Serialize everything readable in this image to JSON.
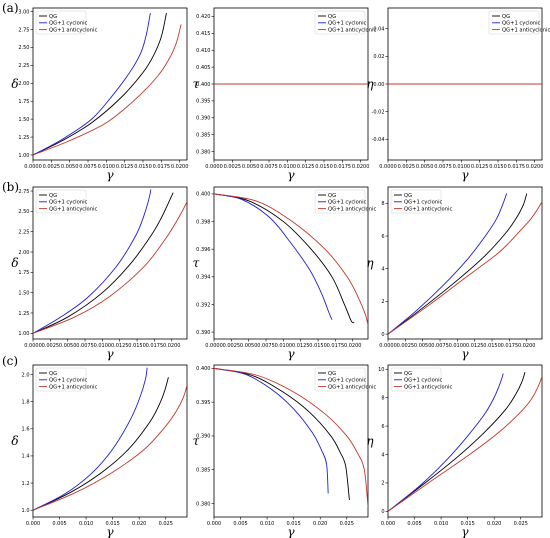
{
  "row_labels": [
    "(a)",
    "(b)",
    "(c)"
  ],
  "colors": {
    "QG": "#000000",
    "QG+1 cyclonic": "#1f1fd6",
    "QG+1 anticyclonic": "#c0392b"
  },
  "chart_data": [
    {
      "type": "line",
      "row": 0,
      "col": 0,
      "xlabel": "γ",
      "ylabel": "δ",
      "xlim": [
        0,
        0.021
      ],
      "ylim": [
        0.93,
        3.05
      ],
      "xticks": [
        0,
        0.0025,
        0.005,
        0.0075,
        0.01,
        0.0125,
        0.015,
        0.0175,
        0.02
      ],
      "xticklabels": [
        "0.0000",
        "0.0025",
        "0.0050",
        "0.0075",
        "0.0100",
        "0.0125",
        "0.0150",
        "0.0175",
        "0.0200"
      ],
      "yticks": [
        1,
        1.25,
        1.5,
        1.75,
        2,
        2.25,
        2.5,
        2.75,
        3
      ],
      "yticklabels": [
        "1.00",
        "1.25",
        "1.50",
        "1.75",
        "2.00",
        "2.25",
        "2.50",
        "2.75",
        "3.00"
      ],
      "legend": "top-left",
      "series": [
        {
          "name": "QG",
          "x": [
            0,
            0.004,
            0.008,
            0.012,
            0.015,
            0.0165,
            0.0175,
            0.0182
          ],
          "y": [
            1,
            1.2,
            1.45,
            1.8,
            2.15,
            2.4,
            2.65,
            2.98
          ]
        },
        {
          "name": "QG+1 cyclonic",
          "x": [
            0,
            0.004,
            0.008,
            0.011,
            0.0135,
            0.0148,
            0.0155,
            0.016
          ],
          "y": [
            1,
            1.22,
            1.5,
            1.85,
            2.2,
            2.45,
            2.7,
            2.98
          ]
        },
        {
          "name": "QG+1 anticyclonic",
          "x": [
            0,
            0.005,
            0.01,
            0.014,
            0.017,
            0.0185,
            0.0195,
            0.0202
          ],
          "y": [
            1,
            1.2,
            1.45,
            1.78,
            2.1,
            2.33,
            2.55,
            2.82
          ]
        }
      ]
    },
    {
      "type": "line",
      "row": 0,
      "col": 1,
      "xlabel": "γ",
      "ylabel": "τ",
      "xlim": [
        0,
        0.021
      ],
      "ylim": [
        0.3775,
        0.4225
      ],
      "xticks": [
        0,
        0.0025,
        0.005,
        0.0075,
        0.01,
        0.0125,
        0.015,
        0.0175,
        0.02
      ],
      "xticklabels": [
        "0.0000",
        "0.0025",
        "0.0050",
        "0.0075",
        "0.0100",
        "0.0125",
        "0.0150",
        "0.0175",
        "0.0200"
      ],
      "yticks": [
        0.38,
        0.385,
        0.39,
        0.395,
        0.4,
        0.405,
        0.41,
        0.415,
        0.42
      ],
      "yticklabels": [
        "0.380",
        "0.385",
        "0.390",
        "0.395",
        "0.400",
        "0.405",
        "0.410",
        "0.415",
        "0.420"
      ],
      "legend": "top-right",
      "series": [
        {
          "name": "QG",
          "x": [
            0,
            0.021
          ],
          "y": [
            0.4,
            0.4
          ]
        },
        {
          "name": "QG+1 cyclonic",
          "x": [
            0,
            0.021
          ],
          "y": [
            0.4,
            0.4
          ]
        },
        {
          "name": "QG+1 anticyclonic",
          "x": [
            0,
            0.021
          ],
          "y": [
            0.4,
            0.4
          ]
        }
      ]
    },
    {
      "type": "line",
      "row": 0,
      "col": 2,
      "xlabel": "γ",
      "ylabel": "η",
      "xlim": [
        0,
        0.021
      ],
      "ylim": [
        -0.055,
        0.055
      ],
      "xticks": [
        0,
        0.0025,
        0.005,
        0.0075,
        0.01,
        0.0125,
        0.015,
        0.0175,
        0.02
      ],
      "xticklabels": [
        "0.0000",
        "0.0025",
        "0.0050",
        "0.0075",
        "0.0100",
        "0.0125",
        "0.0150",
        "0.0175",
        "0.0200"
      ],
      "yticks": [
        -0.04,
        -0.02,
        0,
        0.02,
        0.04
      ],
      "yticklabels": [
        "-0.04",
        "-0.02",
        "0.00",
        "0.02",
        "0.04"
      ],
      "legend": "top-right",
      "series": [
        {
          "name": "QG",
          "x": [
            0,
            0.021
          ],
          "y": [
            0,
            0
          ]
        },
        {
          "name": "QG+1 cyclonic",
          "x": [
            0,
            0.021
          ],
          "y": [
            0,
            0
          ]
        },
        {
          "name": "QG+1 anticyclonic",
          "x": [
            0,
            0.021
          ],
          "y": [
            0,
            0
          ]
        }
      ]
    },
    {
      "type": "line",
      "row": 1,
      "col": 0,
      "xlabel": "γ",
      "ylabel": "δ",
      "xlim": [
        0,
        0.0222
      ],
      "ylim": [
        0.93,
        2.8
      ],
      "xticks": [
        0,
        0.0025,
        0.005,
        0.0075,
        0.01,
        0.0125,
        0.015,
        0.0175,
        0.02
      ],
      "xticklabels": [
        "0.0000",
        "0.0025",
        "0.0050",
        "0.0075",
        "0.0100",
        "0.0125",
        "0.0150",
        "0.0175",
        "0.0200"
      ],
      "yticks": [
        1,
        1.25,
        1.5,
        1.75,
        2,
        2.25,
        2.5,
        2.75
      ],
      "yticklabels": [
        "1.00",
        "1.25",
        "1.50",
        "1.75",
        "2.00",
        "2.25",
        "2.50",
        "2.75"
      ],
      "legend": "top-left",
      "series": [
        {
          "name": "QG",
          "x": [
            0,
            0.005,
            0.01,
            0.014,
            0.017,
            0.0185,
            0.0195,
            0.0202
          ],
          "y": [
            1,
            1.2,
            1.5,
            1.85,
            2.2,
            2.42,
            2.6,
            2.73
          ]
        },
        {
          "name": "QG+1 cyclonic",
          "x": [
            0,
            0.004,
            0.008,
            0.012,
            0.0148,
            0.016,
            0.0167,
            0.017
          ],
          "y": [
            1,
            1.2,
            1.45,
            1.82,
            2.2,
            2.45,
            2.65,
            2.77
          ]
        },
        {
          "name": "QG+1 anticyclonic",
          "x": [
            0,
            0.006,
            0.011,
            0.016,
            0.019,
            0.0205,
            0.0215,
            0.0222
          ],
          "y": [
            1,
            1.2,
            1.45,
            1.82,
            2.15,
            2.35,
            2.5,
            2.62
          ]
        }
      ]
    },
    {
      "type": "line",
      "row": 1,
      "col": 1,
      "xlabel": "γ",
      "ylabel": "τ",
      "xlim": [
        0,
        0.0222
      ],
      "ylim": [
        0.3895,
        0.4005
      ],
      "xticks": [
        0,
        0.0025,
        0.005,
        0.0075,
        0.01,
        0.0125,
        0.015,
        0.0175,
        0.02
      ],
      "xticklabels": [
        "0.0000",
        "0.0025",
        "0.0050",
        "0.0075",
        "0.0100",
        "0.0125",
        "0.0150",
        "0.0175",
        "0.0200"
      ],
      "yticks": [
        0.39,
        0.392,
        0.394,
        0.396,
        0.398,
        0.4
      ],
      "yticklabels": [
        "0.390",
        "0.392",
        "0.394",
        "0.396",
        "0.398",
        "0.400"
      ],
      "legend": "top-right",
      "series": [
        {
          "name": "QG",
          "x": [
            0,
            0.005,
            0.01,
            0.014,
            0.017,
            0.0188,
            0.0198,
            0.0202
          ],
          "y": [
            0.4,
            0.3995,
            0.398,
            0.396,
            0.394,
            0.392,
            0.3908,
            0.3907
          ]
        },
        {
          "name": "QG+1 cyclonic",
          "x": [
            0,
            0.004,
            0.008,
            0.011,
            0.0138,
            0.0155,
            0.0165,
            0.017
          ],
          "y": [
            0.4,
            0.3996,
            0.3983,
            0.3965,
            0.3945,
            0.3928,
            0.3915,
            0.3909
          ]
        },
        {
          "name": "QG+1 anticyclonic",
          "x": [
            0,
            0.006,
            0.011,
            0.016,
            0.0192,
            0.0208,
            0.0218,
            0.0222
          ],
          "y": [
            0.4,
            0.3995,
            0.3981,
            0.396,
            0.394,
            0.3925,
            0.3913,
            0.3905
          ]
        }
      ]
    },
    {
      "type": "line",
      "row": 1,
      "col": 2,
      "xlabel": "γ",
      "ylabel": "η",
      "xlim": [
        0,
        0.0222
      ],
      "ylim": [
        -0.3,
        9
      ],
      "xticks": [
        0,
        0.0025,
        0.005,
        0.0075,
        0.01,
        0.0125,
        0.015,
        0.0175,
        0.02
      ],
      "xticklabels": [
        "0.0000",
        "0.0025",
        "0.0050",
        "0.0075",
        "0.0100",
        "0.0125",
        "0.0150",
        "0.0175",
        "0.0200"
      ],
      "yticks": [
        0,
        2,
        4,
        6,
        8
      ],
      "yticklabels": [
        "0",
        "2",
        "4",
        "6",
        "8"
      ],
      "legend": "top-left",
      "series": [
        {
          "name": "QG",
          "x": [
            0,
            0.005,
            0.01,
            0.014,
            0.017,
            0.0185,
            0.0195,
            0.02
          ],
          "y": [
            0,
            1.6,
            3.3,
            4.8,
            6.2,
            7.1,
            7.9,
            8.6
          ]
        },
        {
          "name": "QG+1 cyclonic",
          "x": [
            0,
            0.004,
            0.008,
            0.0115,
            0.0142,
            0.0157,
            0.0166,
            0.0171
          ],
          "y": [
            0,
            1.4,
            3.0,
            4.6,
            6.1,
            7.1,
            8.0,
            8.6
          ]
        },
        {
          "name": "QG+1 anticyclonic",
          "x": [
            0,
            0.006,
            0.011,
            0.016,
            0.019,
            0.0205,
            0.0215,
            0.0222
          ],
          "y": [
            0,
            1.8,
            3.4,
            5.0,
            6.3,
            7.0,
            7.6,
            8.1
          ]
        }
      ]
    },
    {
      "type": "line",
      "row": 2,
      "col": 0,
      "xlabel": "γ",
      "ylabel": "δ",
      "xlim": [
        0,
        0.029
      ],
      "ylim": [
        0.95,
        2.07
      ],
      "xticks": [
        0,
        0.005,
        0.01,
        0.015,
        0.02,
        0.025
      ],
      "xticklabels": [
        "0.000",
        "0.005",
        "0.010",
        "0.015",
        "0.020",
        "0.025"
      ],
      "yticks": [
        1,
        1.2,
        1.4,
        1.6,
        1.8,
        2
      ],
      "yticklabels": [
        "1.0",
        "1.2",
        "1.4",
        "1.6",
        "1.8",
        "2.0"
      ],
      "legend": "top-left",
      "series": [
        {
          "name": "QG",
          "x": [
            0,
            0.007,
            0.013,
            0.018,
            0.022,
            0.0238,
            0.0248,
            0.0255
          ],
          "y": [
            1,
            1.13,
            1.28,
            1.45,
            1.65,
            1.78,
            1.88,
            1.98
          ]
        },
        {
          "name": "QG+1 cyclonic",
          "x": [
            0,
            0.006,
            0.011,
            0.015,
            0.0185,
            0.0203,
            0.0212,
            0.0215
          ],
          "y": [
            1,
            1.12,
            1.27,
            1.45,
            1.68,
            1.85,
            1.97,
            2.05
          ]
        },
        {
          "name": "QG+1 anticyclonic",
          "x": [
            0,
            0.008,
            0.015,
            0.021,
            0.025,
            0.027,
            0.0283,
            0.029
          ],
          "y": [
            1,
            1.13,
            1.28,
            1.45,
            1.62,
            1.73,
            1.83,
            1.92
          ]
        }
      ]
    },
    {
      "type": "line",
      "row": 2,
      "col": 1,
      "xlabel": "γ",
      "ylabel": "τ",
      "xlim": [
        0,
        0.029
      ],
      "ylim": [
        0.378,
        0.4005
      ],
      "xticks": [
        0,
        0.005,
        0.01,
        0.015,
        0.02,
        0.025
      ],
      "xticklabels": [
        "0.000",
        "0.005",
        "0.010",
        "0.015",
        "0.020",
        "0.025"
      ],
      "yticks": [
        0.38,
        0.385,
        0.39,
        0.395,
        0.4
      ],
      "yticklabels": [
        "0.380",
        "0.385",
        "0.390",
        "0.395",
        "0.400"
      ],
      "legend": "top-right",
      "series": [
        {
          "name": "QG",
          "x": [
            0,
            0.007,
            0.013,
            0.018,
            0.022,
            0.0238,
            0.0248,
            0.0255
          ],
          "y": [
            0.4,
            0.399,
            0.3965,
            0.3935,
            0.39,
            0.3875,
            0.3855,
            0.3805
          ]
        },
        {
          "name": "QG+1 cyclonic",
          "x": [
            0,
            0.006,
            0.011,
            0.015,
            0.0185,
            0.0203,
            0.0212,
            0.0215
          ],
          "y": [
            0.4,
            0.3991,
            0.3968,
            0.394,
            0.3905,
            0.3878,
            0.3858,
            0.3815
          ]
        },
        {
          "name": "QG+1 anticyclonic",
          "x": [
            0,
            0.008,
            0.015,
            0.021,
            0.025,
            0.027,
            0.0283,
            0.029
          ],
          "y": [
            0.4,
            0.399,
            0.3965,
            0.3932,
            0.39,
            0.3875,
            0.385,
            0.3795
          ]
        }
      ]
    },
    {
      "type": "line",
      "row": 2,
      "col": 2,
      "xlabel": "γ",
      "ylabel": "η",
      "xlim": [
        0,
        0.029
      ],
      "ylim": [
        -0.4,
        10.3
      ],
      "xticks": [
        0,
        0.005,
        0.01,
        0.015,
        0.02,
        0.025
      ],
      "xticklabels": [
        "0.000",
        "0.005",
        "0.010",
        "0.015",
        "0.020",
        "0.025"
      ],
      "yticks": [
        0,
        2,
        4,
        6,
        8,
        10
      ],
      "yticklabels": [
        "0",
        "2",
        "4",
        "6",
        "8",
        "10"
      ],
      "legend": "top-left",
      "series": [
        {
          "name": "QG",
          "x": [
            0,
            0.007,
            0.013,
            0.018,
            0.022,
            0.024,
            0.0252,
            0.0258
          ],
          "y": [
            0,
            2.0,
            3.8,
            5.5,
            7.1,
            8.2,
            9.1,
            9.8
          ]
        },
        {
          "name": "QG+1 cyclonic",
          "x": [
            0,
            0.006,
            0.011,
            0.015,
            0.0183,
            0.0201,
            0.0212,
            0.0217
          ],
          "y": [
            0,
            1.8,
            3.6,
            5.3,
            6.9,
            8.1,
            9.1,
            9.7
          ]
        },
        {
          "name": "QG+1 anticyclonic",
          "x": [
            0,
            0.008,
            0.015,
            0.021,
            0.025,
            0.027,
            0.0283,
            0.029
          ],
          "y": [
            0,
            2.1,
            3.9,
            5.6,
            7.0,
            7.9,
            8.8,
            9.5
          ]
        }
      ]
    }
  ]
}
